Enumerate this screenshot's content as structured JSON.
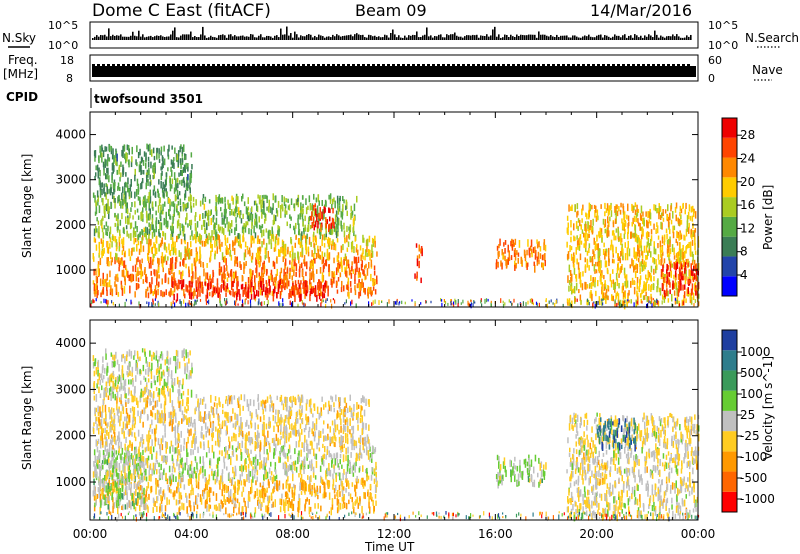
{
  "header": {
    "title": "Dome C East (fitACF)",
    "beam": "Beam 09",
    "date": "14/Mar/2016"
  },
  "summary_panels": {
    "nsky_label": "N.Sky",
    "nsky_left_top": "10^5",
    "nsky_left_bottom": "10^0",
    "nsky_right_top": "10^5",
    "nsky_right_bottom": "10^0",
    "nsearch_label": "N.Search",
    "freq_label": "Freq.",
    "freq_unit": "[MHz]",
    "freq_left_top": "18",
    "freq_left_bottom": "8",
    "nave_label": "Nave",
    "nave_right_top": "60",
    "nave_right_bottom": "0",
    "cpid_label": "CPID",
    "cpid_value": "twofsound 3501"
  },
  "x_axis": {
    "label": "Time UT",
    "ticks": [
      "00:00",
      "04:00",
      "08:00",
      "12:00",
      "16:00",
      "20:00",
      "00:00"
    ]
  },
  "y_axis": {
    "label": "Slant Range [km]",
    "ticks": [
      "1000",
      "2000",
      "3000",
      "4000"
    ]
  },
  "power_scale": {
    "label": "Power [dB]",
    "ticks": [
      "4",
      "8",
      "12",
      "16",
      "20",
      "24",
      "28"
    ],
    "colors": [
      "#0000ff",
      "#2244aa",
      "#3a7d55",
      "#55aa44",
      "#aacc22",
      "#ffcc00",
      "#ff8800",
      "#ff4400",
      "#ee0000"
    ]
  },
  "velocity_scale": {
    "label": "Velocity [m s^-1]",
    "ticks": [
      "1000",
      "500",
      "100",
      "25",
      "-25",
      "-100",
      "-500",
      "-1000"
    ],
    "colors": [
      "#1f3fa0",
      "#2e7d8c",
      "#3a9a5a",
      "#66cc33",
      "#c0c0c0",
      "#ffcc22",
      "#ff9900",
      "#ff6600",
      "#ff0000"
    ]
  },
  "chart_data": [
    {
      "type": "heatmap",
      "title": "Power",
      "xlabel": "Time UT",
      "ylabel": "Slant Range [km]",
      "xlim": [
        0,
        24
      ],
      "ylim": [
        180,
        4500
      ],
      "colorbar": {
        "label": "Power [dB]",
        "range": [
          0,
          32
        ]
      },
      "regions": [
        {
          "t0": 0.1,
          "t1": 11.3,
          "r0": 500,
          "r1": 1300,
          "value": 24
        },
        {
          "t0": 3.2,
          "t1": 9.5,
          "r0": 450,
          "r1": 800,
          "value": 29
        },
        {
          "t0": 0.1,
          "t1": 11.3,
          "r0": 1300,
          "r1": 1800,
          "value": 20
        },
        {
          "t0": 0.1,
          "t1": 10.5,
          "r0": 1800,
          "r1": 2700,
          "value": 14
        },
        {
          "t0": 0.1,
          "t1": 4.0,
          "r0": 2700,
          "r1": 3800,
          "value": 11
        },
        {
          "t0": 8.5,
          "t1": 9.6,
          "r0": 2000,
          "r1": 2500,
          "value": 28
        },
        {
          "t0": 12.8,
          "t1": 13.1,
          "r0": 800,
          "r1": 1600,
          "value": 27
        },
        {
          "t0": 16.0,
          "t1": 18.0,
          "r0": 1100,
          "r1": 1700,
          "value": 24
        },
        {
          "t0": 18.8,
          "t1": 24.0,
          "r0": 300,
          "r1": 2500,
          "value": 20
        },
        {
          "t0": 22.5,
          "t1": 24.0,
          "r0": 500,
          "r1": 1200,
          "value": 28
        }
      ]
    },
    {
      "type": "heatmap",
      "title": "Velocity",
      "xlabel": "Time UT",
      "ylabel": "Slant Range [km]",
      "xlim": [
        0,
        24
      ],
      "ylim": [
        180,
        4500
      ],
      "colorbar": {
        "label": "Velocity [m s^-1]",
        "range": [
          -1000,
          1000
        ]
      },
      "regions": [
        {
          "t0": 0.1,
          "t1": 11.3,
          "r0": 450,
          "r1": 1100,
          "value": -300
        },
        {
          "t0": 0.1,
          "t1": 2.2,
          "r0": 500,
          "r1": 1700,
          "value": 150
        },
        {
          "t0": 0.1,
          "t1": 11.3,
          "r0": 1100,
          "r1": 1800,
          "value": 0
        },
        {
          "t0": 0.1,
          "t1": 11.0,
          "r0": 1800,
          "r1": 2900,
          "value": -150
        },
        {
          "t0": 0.1,
          "t1": 4.0,
          "r0": 2900,
          "r1": 3900,
          "value": 0
        },
        {
          "t0": 16.0,
          "t1": 18.0,
          "r0": 1000,
          "r1": 1600,
          "value": 100
        },
        {
          "t0": 18.8,
          "t1": 24.0,
          "r0": 300,
          "r1": 2500,
          "value": -100
        },
        {
          "t0": 20.0,
          "t1": 21.5,
          "r0": 1800,
          "r1": 2400,
          "value": 700
        }
      ]
    }
  ]
}
